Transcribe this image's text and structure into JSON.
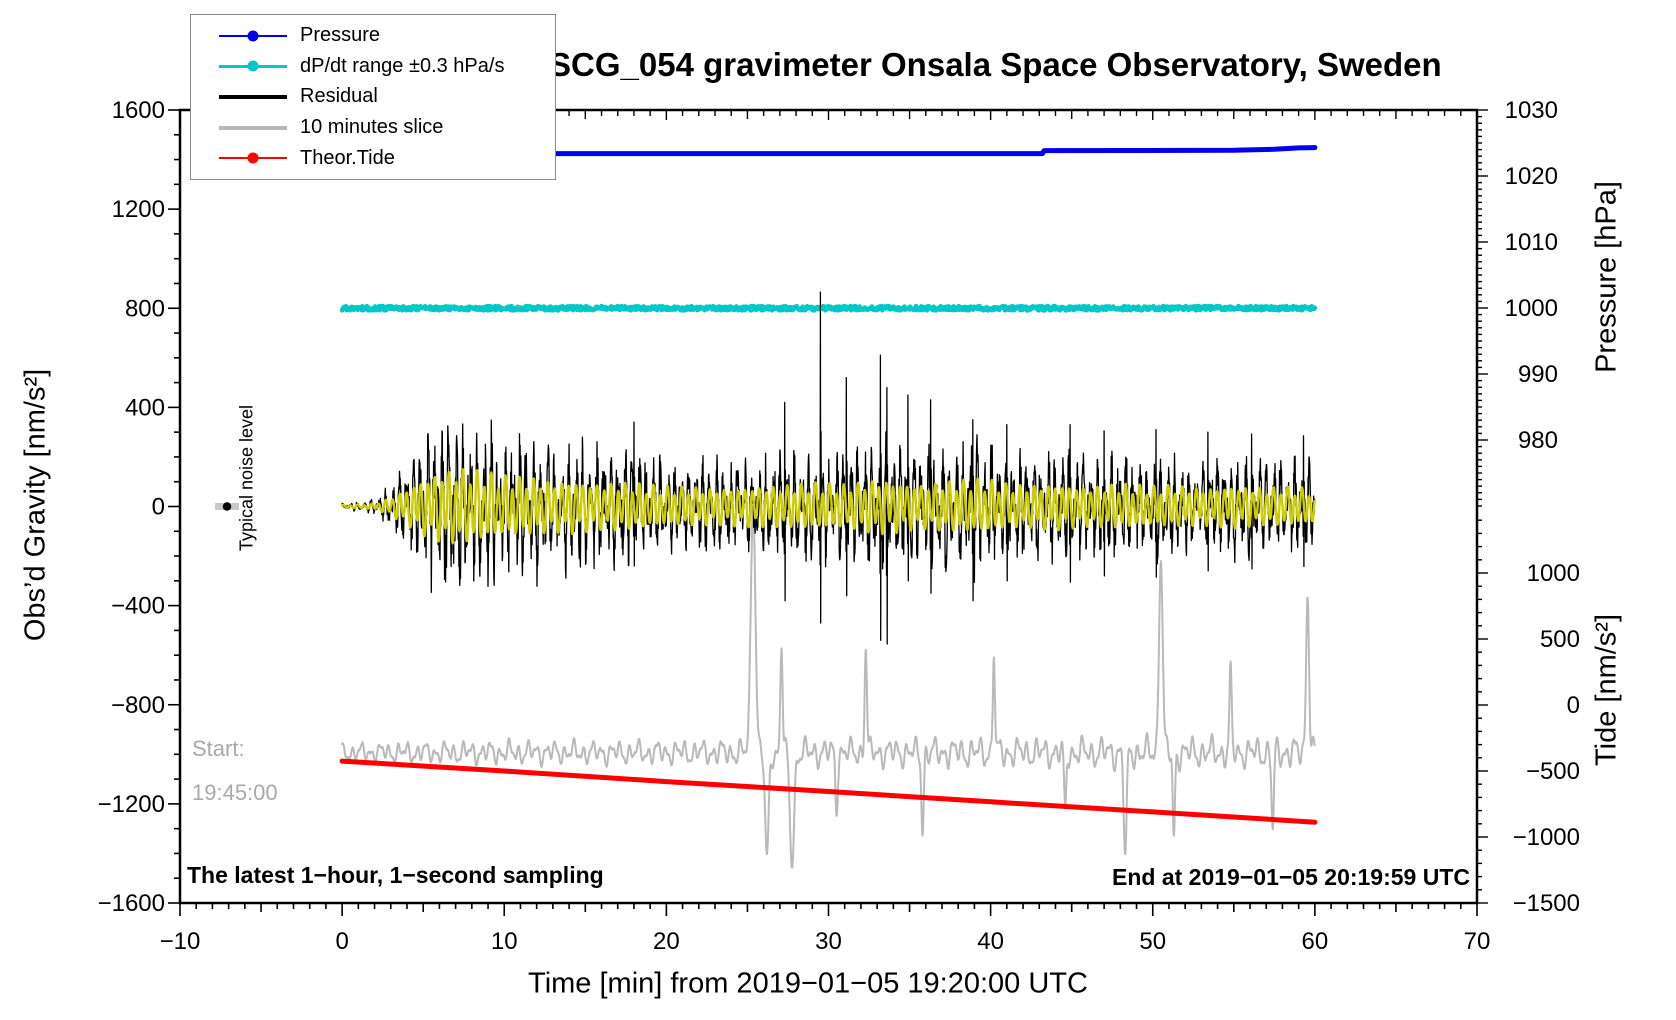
{
  "title": "SCG_054 gravimeter Onsala Space Observatory, Sweden",
  "legend": {
    "position": "upper-left",
    "items": [
      {
        "label": "Pressure",
        "color": "#0000ee",
        "marker": "dot",
        "width": 2
      },
      {
        "label": "dP/dt range ±0.3 hPa/s",
        "color": "#00c8c8",
        "marker": "dot",
        "width": 3
      },
      {
        "label": "Residual",
        "color": "#000000",
        "marker": "none",
        "width": 4
      },
      {
        "label": "10 minutes slice",
        "color": "#b9b9b9",
        "marker": "none",
        "width": 4
      },
      {
        "label": "Theor.Tide",
        "color": "#ff0000",
        "marker": "dot",
        "width": 2
      }
    ]
  },
  "axes": {
    "x": {
      "title": "Time [min] from 2019−01−05 19:20:00 UTC",
      "min": -10,
      "max": 70,
      "minor_step": 1,
      "medium_step": 5,
      "major": [
        -10,
        0,
        10,
        20,
        30,
        40,
        50,
        60,
        70
      ],
      "labels": [
        "−10",
        "0",
        "10",
        "20",
        "30",
        "40",
        "50",
        "60",
        "70"
      ]
    },
    "gravity": {
      "title": "Obs’d Gravity [nm/s²]",
      "min": -1600,
      "max": 1600,
      "minor_step": 100,
      "major": [
        1600,
        1200,
        800,
        400,
        0,
        -400,
        -800,
        -1200,
        -1600
      ],
      "labels": [
        "1600",
        "1200",
        "800",
        "400",
        "0",
        "−400",
        "−800",
        "−1200",
        "−1600"
      ]
    },
    "pressure": {
      "title": "Pressure [hPa]",
      "minor_step": 1,
      "minor_min": 970,
      "major": [
        1030,
        1020,
        1010,
        1000,
        990,
        980
      ],
      "labels": [
        "1030",
        "1020",
        "1010",
        "1000",
        "990",
        "980"
      ]
    },
    "tide": {
      "title": "Tide [nm/s²]",
      "minor_step": 100,
      "minor_max": 1400,
      "major": [
        1000,
        500,
        0,
        -500,
        -1000,
        -1500
      ],
      "labels": [
        "1000",
        "500",
        "0",
        "−500",
        "−1000",
        "−1500"
      ]
    }
  },
  "annotations": {
    "noise_label": "Typical noise level",
    "start_line1": "Start:",
    "start_line2": "19:45:00",
    "sampling_note": "The latest 1−hour, 1−second sampling",
    "end_note": "End at 2019−01−05 20:19:59 UTC"
  },
  "chart_data": {
    "type": "line",
    "x_units": "minutes from 19:20:00 UTC",
    "x_range": [
      -10,
      70
    ],
    "grid": false,
    "noise_seed": 20190105,
    "noise_marker": {
      "t": -7.1,
      "gravity": 0
    },
    "series": [
      {
        "name": "Pressure",
        "axis": "pressure",
        "color": "#0000ee",
        "stroke": 5,
        "points": [
          [
            0,
            1023.4
          ],
          [
            43.2,
            1023.4
          ],
          [
            43.3,
            1023.85
          ],
          [
            55,
            1023.9
          ],
          [
            57.5,
            1024.05
          ],
          [
            59,
            1024.25
          ],
          [
            60,
            1024.3
          ]
        ]
      },
      {
        "name": "dP/dt range ±0.3 hPa/s",
        "axis": "gravity",
        "color": "#00c8c8",
        "stroke": 4.5,
        "band_center": 800,
        "band_jitter": 9,
        "t_start": 0,
        "t_end": 60
      },
      {
        "name": "Residual",
        "axis": "gravity",
        "color": "#000000",
        "stroke": 1.3,
        "envelope": [
          [
            0,
            12
          ],
          [
            1.5,
            15
          ],
          [
            2.2,
            30
          ],
          [
            3,
            70
          ],
          [
            4,
            140
          ],
          [
            5,
            215
          ],
          [
            6,
            265
          ],
          [
            7,
            290
          ],
          [
            8,
            280
          ],
          [
            9,
            255
          ],
          [
            10,
            230
          ],
          [
            12,
            215
          ],
          [
            13,
            192
          ],
          [
            14,
            205
          ],
          [
            15,
            190
          ],
          [
            16,
            175
          ],
          [
            17,
            185
          ],
          [
            18,
            178
          ],
          [
            19,
            162
          ],
          [
            20,
            152
          ],
          [
            22,
            148
          ],
          [
            23,
            138
          ],
          [
            25,
            152
          ],
          [
            27,
            158
          ],
          [
            28,
            168
          ],
          [
            29,
            178
          ],
          [
            31,
            167
          ],
          [
            32,
            188
          ],
          [
            33,
            212
          ],
          [
            34,
            198
          ],
          [
            35,
            178
          ],
          [
            36,
            172
          ],
          [
            37,
            188
          ],
          [
            39,
            207
          ],
          [
            40,
            197
          ],
          [
            41,
            172
          ],
          [
            42,
            162
          ],
          [
            44,
            177
          ],
          [
            45,
            162
          ],
          [
            46,
            152
          ],
          [
            48,
            172
          ],
          [
            50,
            152
          ],
          [
            51,
            162
          ],
          [
            53,
            142
          ],
          [
            55,
            162
          ],
          [
            57,
            142
          ],
          [
            58,
            152
          ],
          [
            60,
            132
          ]
        ],
        "freqs": [
          2.3,
          3.37
        ],
        "noise_frac": 0.55,
        "spikes": [
          [
            18.0,
            340,
            -240
          ],
          [
            27.3,
            420,
            -380
          ],
          [
            29.5,
            865,
            -470
          ],
          [
            31.1,
            520,
            -360
          ],
          [
            33.2,
            610,
            -540
          ],
          [
            33.6,
            480,
            -555
          ],
          [
            34.9,
            450,
            -300
          ],
          [
            36.3,
            430,
            -350
          ],
          [
            38.9,
            350,
            -380
          ],
          [
            41.0,
            330,
            -300
          ],
          [
            44.9,
            330,
            -305
          ],
          [
            47.0,
            305,
            -280
          ],
          [
            50.2,
            310,
            -285
          ],
          [
            53.4,
            300,
            -260
          ],
          [
            56.1,
            292,
            -252
          ],
          [
            59.3,
            285,
            -242
          ]
        ]
      },
      {
        "name": "Smoothed residual",
        "axis": "gravity",
        "color": "#cdcd00",
        "stroke": 2.4,
        "envelope_scale": 0.5,
        "envelope_cap": 150,
        "freq": 2.3
      },
      {
        "name": "10 minutes slice",
        "axis": "tide",
        "color": "#b9b9b9",
        "stroke": 2,
        "mean": -360,
        "amplitude": [
          [
            0,
            70
          ],
          [
            5,
            85
          ],
          [
            10,
            95
          ],
          [
            15,
            90
          ],
          [
            20,
            95
          ],
          [
            24,
            100
          ],
          [
            28,
            115
          ],
          [
            32,
            108
          ],
          [
            36,
            114
          ],
          [
            40,
            120
          ],
          [
            44,
            114
          ],
          [
            48,
            126
          ],
          [
            52,
            122
          ],
          [
            56,
            118
          ],
          [
            60,
            128
          ]
        ],
        "periods": [
          0.57,
          1.31,
          0.31
        ],
        "events": [
          [
            25.35,
            1515,
            0.2
          ],
          [
            26.2,
            -1130,
            0.16
          ],
          [
            27.1,
            430,
            0.1
          ],
          [
            27.75,
            -1235,
            0.18
          ],
          [
            30.5,
            -840,
            0.1
          ],
          [
            32.3,
            420,
            0.1
          ],
          [
            35.8,
            -990,
            0.1
          ],
          [
            40.2,
            360,
            0.09
          ],
          [
            44.6,
            -760,
            0.1
          ],
          [
            48.3,
            -1130,
            0.13
          ],
          [
            50.5,
            1090,
            0.16
          ],
          [
            51.3,
            -990,
            0.1
          ],
          [
            54.8,
            330,
            0.09
          ],
          [
            57.4,
            -940,
            0.1
          ],
          [
            59.55,
            820,
            0.13
          ]
        ]
      },
      {
        "name": "Theor.Tide",
        "axis": "tide",
        "color": "#ff0000",
        "stroke": 5,
        "points": [
          [
            0,
            -425
          ],
          [
            10,
            -500
          ],
          [
            20,
            -580
          ],
          [
            30,
            -655
          ],
          [
            40,
            -733
          ],
          [
            50,
            -810
          ],
          [
            60,
            -888
          ]
        ]
      }
    ]
  }
}
